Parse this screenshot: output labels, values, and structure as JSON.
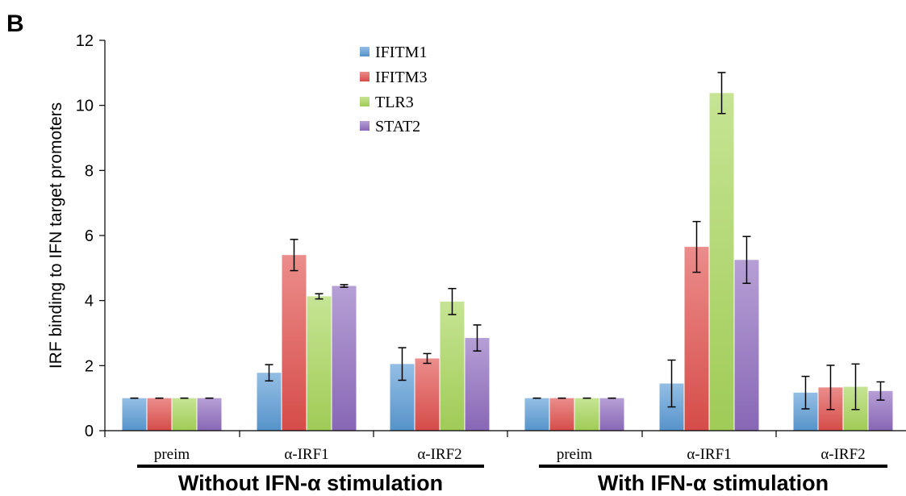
{
  "panel_label": "B",
  "chart_data": {
    "type": "bar",
    "title": "",
    "ylabel": "IRF binding to IFN target promoters",
    "xlabel": "",
    "ylim": [
      0,
      12
    ],
    "yticks": [
      "0",
      "2",
      "4",
      "6",
      "8",
      "10",
      "12"
    ],
    "categories": [
      "preim",
      "α-IRF1",
      "α-IRF2",
      "preim",
      "α-IRF1",
      "α-IRF2"
    ],
    "groups": [
      {
        "label": "Without IFN-α stimulation",
        "categories": [
          0,
          1,
          2
        ]
      },
      {
        "label": "With IFN-α stimulation",
        "categories": [
          3,
          4,
          5
        ]
      }
    ],
    "series": [
      {
        "name": "IFITM1",
        "color": "#5b9bd5",
        "values": [
          1.0,
          1.78,
          2.05,
          1.0,
          1.45,
          1.17
        ],
        "errors": [
          0.0,
          0.25,
          0.5,
          0.0,
          0.72,
          0.5
        ]
      },
      {
        "name": "IFITM3",
        "color": "#e0504d",
        "values": [
          1.0,
          5.4,
          2.22,
          1.0,
          5.65,
          1.33
        ],
        "errors": [
          0.0,
          0.48,
          0.15,
          0.0,
          0.78,
          0.68
        ]
      },
      {
        "name": "TLR3",
        "color": "#a8d65a",
        "values": [
          1.0,
          4.13,
          3.97,
          1.0,
          10.38,
          1.35
        ],
        "errors": [
          0.0,
          0.08,
          0.4,
          0.0,
          0.63,
          0.7
        ]
      },
      {
        "name": "STAT2",
        "color": "#8f6cbf",
        "values": [
          1.0,
          4.45,
          2.85,
          1.0,
          5.25,
          1.22
        ],
        "errors": [
          0.0,
          0.04,
          0.4,
          0.0,
          0.72,
          0.28
        ]
      }
    ],
    "legend_position": "top-center",
    "grid": false
  }
}
